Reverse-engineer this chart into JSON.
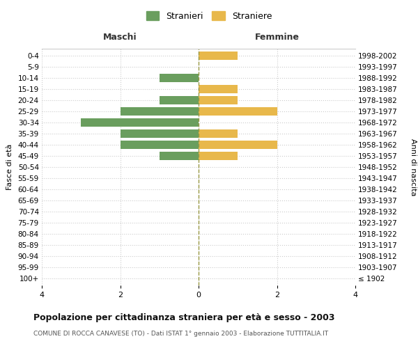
{
  "age_groups": [
    "100+",
    "95-99",
    "90-94",
    "85-89",
    "80-84",
    "75-79",
    "70-74",
    "65-69",
    "60-64",
    "55-59",
    "50-54",
    "45-49",
    "40-44",
    "35-39",
    "30-34",
    "25-29",
    "20-24",
    "15-19",
    "10-14",
    "5-9",
    "0-4"
  ],
  "birth_years": [
    "≤ 1902",
    "1903-1907",
    "1908-1912",
    "1913-1917",
    "1918-1922",
    "1923-1927",
    "1928-1932",
    "1933-1937",
    "1938-1942",
    "1943-1947",
    "1948-1952",
    "1953-1957",
    "1958-1962",
    "1963-1967",
    "1968-1972",
    "1973-1977",
    "1978-1982",
    "1983-1987",
    "1988-1992",
    "1993-1997",
    "1998-2002"
  ],
  "maschi": [
    0,
    0,
    0,
    0,
    0,
    0,
    0,
    0,
    0,
    0,
    0,
    1,
    2,
    2,
    3,
    2,
    1,
    0,
    1,
    0,
    0
  ],
  "femmine": [
    0,
    0,
    0,
    0,
    0,
    0,
    0,
    0,
    0,
    0,
    0,
    1,
    2,
    1,
    0,
    2,
    1,
    1,
    0,
    0,
    1
  ],
  "maschi_color": "#6a9e5e",
  "femmine_color": "#e8b84b",
  "title": "Popolazione per cittadinanza straniera per età e sesso - 2003",
  "subtitle": "COMUNE DI ROCCA CANAVESE (TO) - Dati ISTAT 1° gennaio 2003 - Elaborazione TUTTITALIA.IT",
  "xlabel_left": "Maschi",
  "xlabel_right": "Femmine",
  "ylabel_left": "Fasce di età",
  "ylabel_right": "Anni di nascita",
  "legend_maschi": "Stranieri",
  "legend_femmine": "Straniere",
  "xlim": 4,
  "background_color": "#ffffff",
  "grid_color": "#cccccc",
  "bar_height": 0.75
}
